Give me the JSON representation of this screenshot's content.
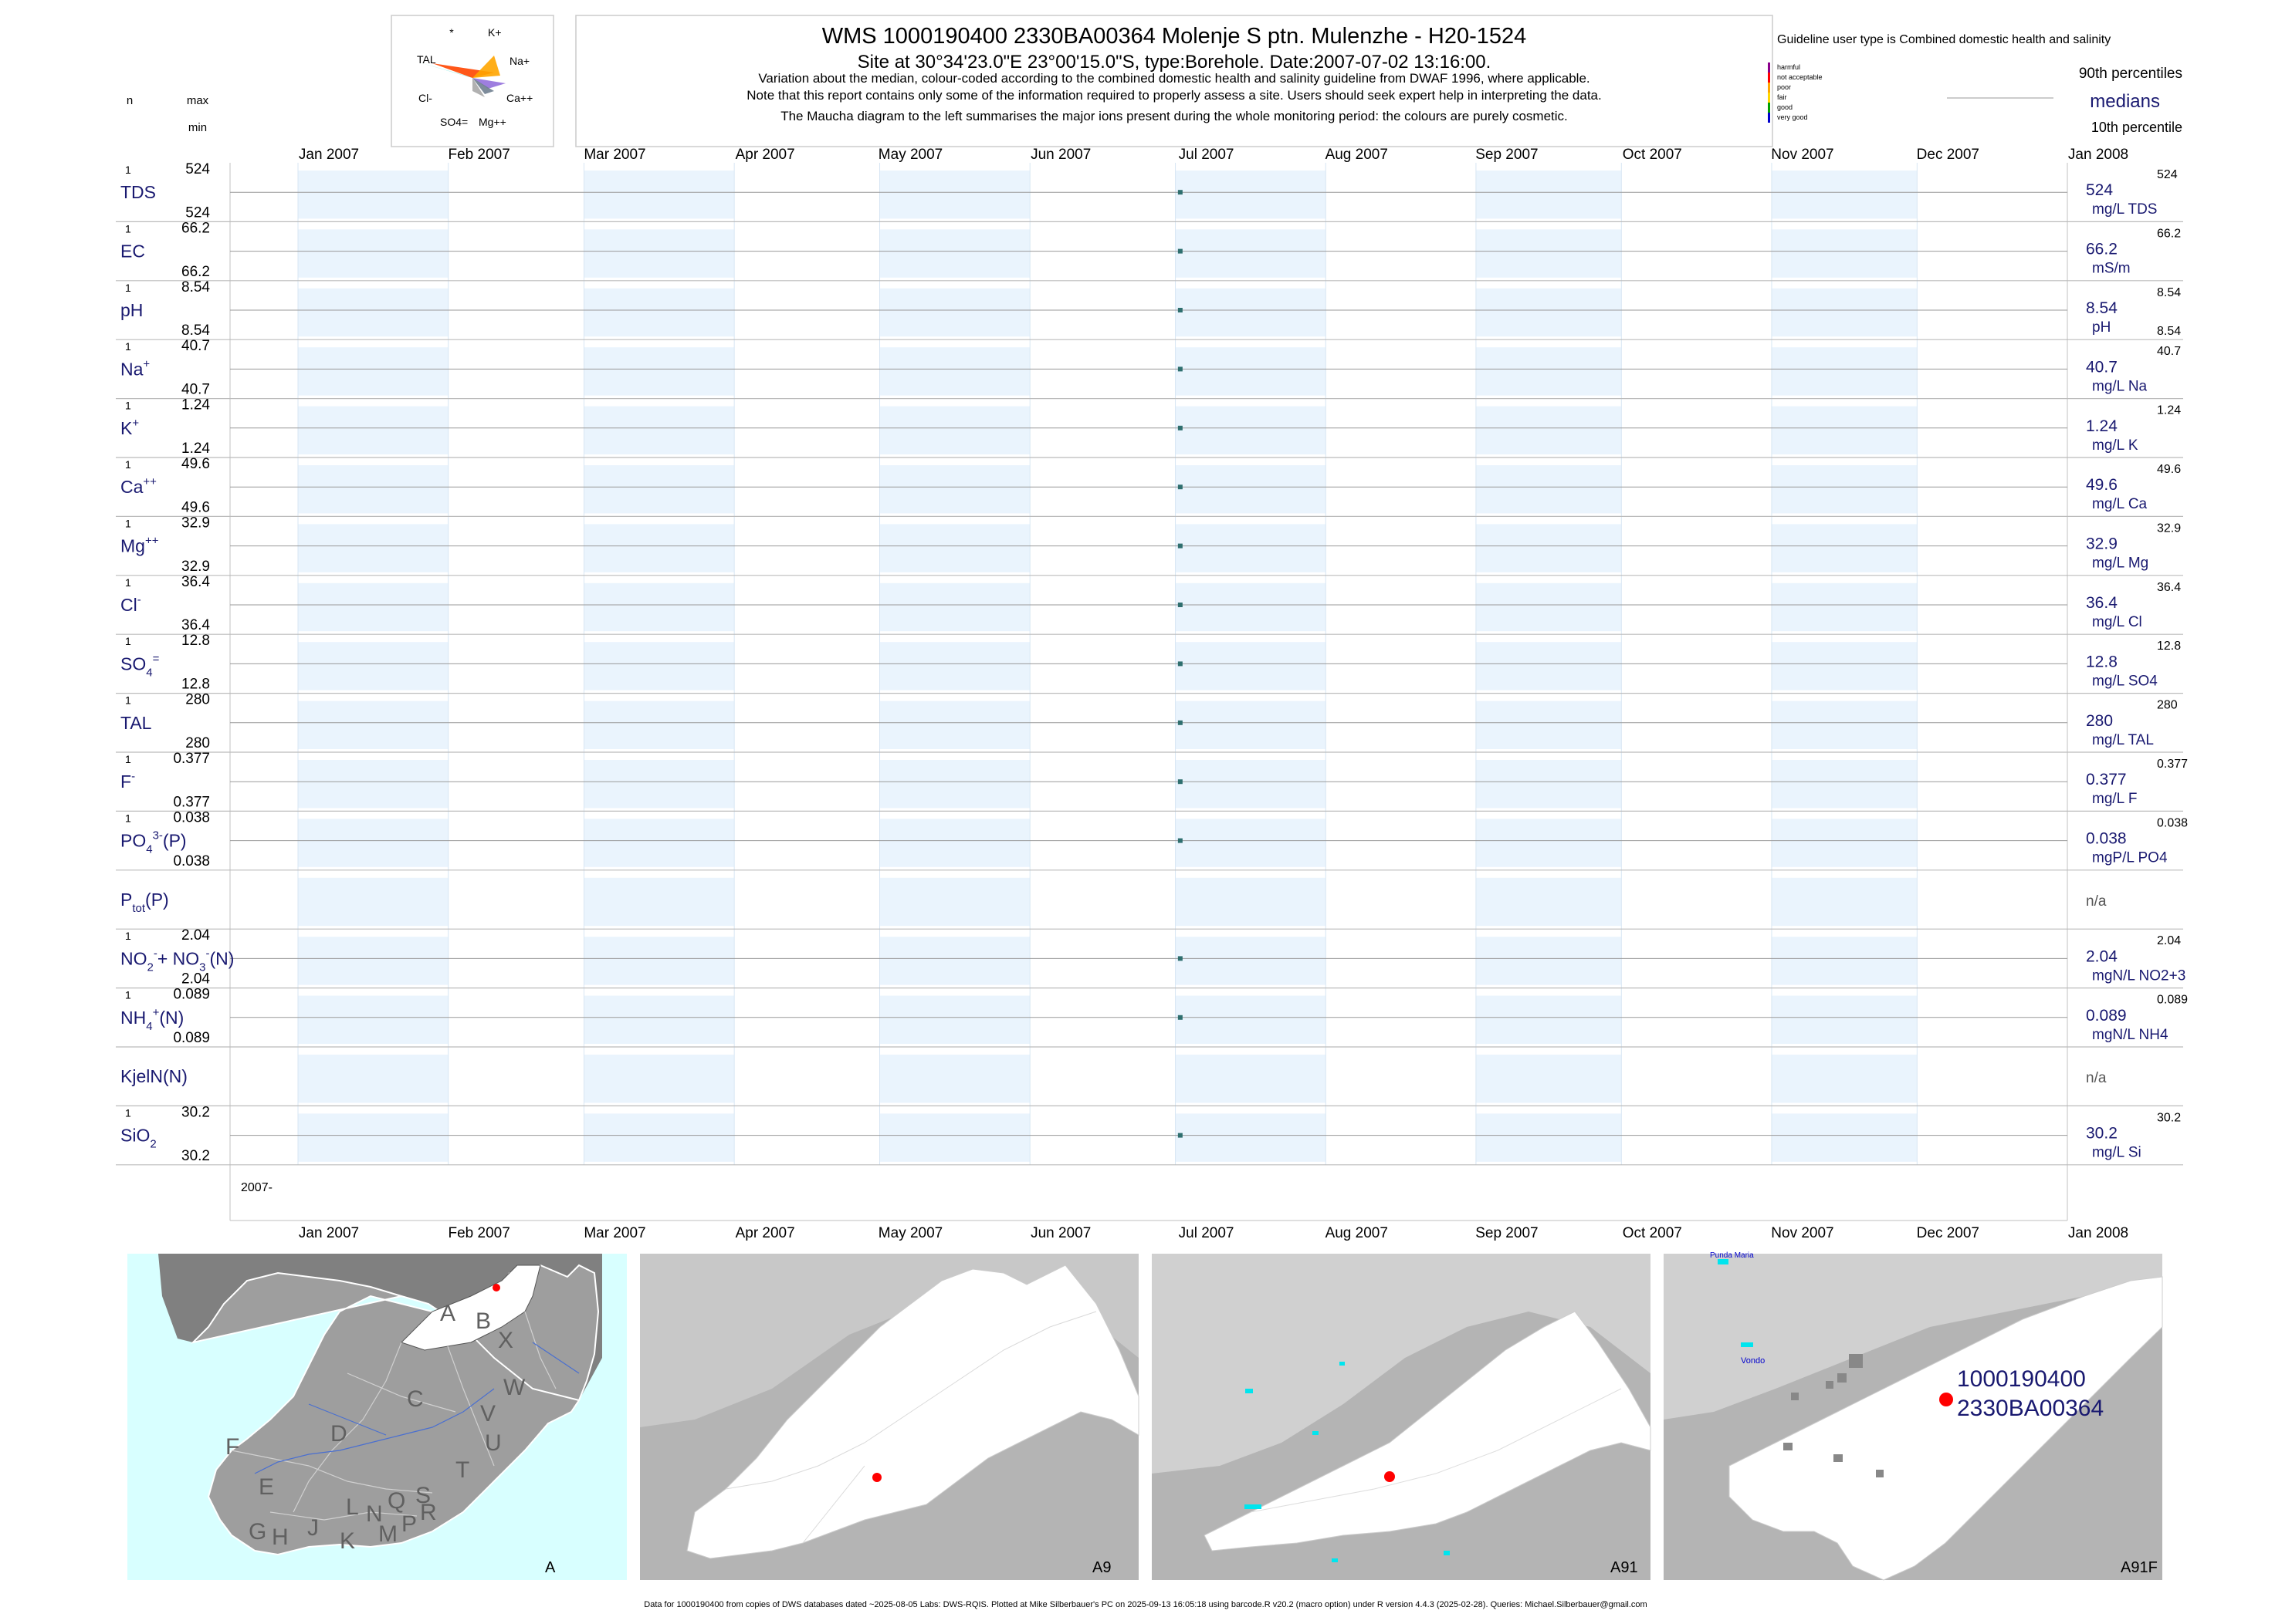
{
  "header": {
    "title": "WMS 1000190400 2330BA00364 Molenje S ptn. Mulenzhe - H20-1524",
    "subtitle": "Site at 30°34'23.0\"E 23°00'15.0\"S, type:Borehole. Date:2007-07-02 13:16:00.",
    "note1": "Variation about the median,  colour-coded according to the combined domestic health and salinity guideline from DWAF 1996, where applicable.",
    "note2": "Note that this report contains only some of the information required to properly assess a site. Users should seek expert help in interpreting the data.",
    "note3": "The Maucha diagram to the left summarises the major ions present during the whole monitoring period: the colours are purely cosmetic."
  },
  "left_header": {
    "n": "n",
    "max": "max",
    "min": "min"
  },
  "maucha": {
    "labels": [
      "*",
      "K+",
      "TAL",
      "Na+",
      "Cl-",
      "Ca++",
      "SO4=",
      "Mg++"
    ],
    "colors": [
      "#40e0d0",
      "#ff4500",
      "#ffa500",
      "#9370db",
      "#a9a9a9",
      "#708090"
    ]
  },
  "legend": {
    "title": "Guideline user type is Combined domestic health and salinity",
    "classes": [
      {
        "label": "harmful",
        "color": "#8b008b"
      },
      {
        "label": "not acceptable",
        "color": "#ff0000"
      },
      {
        "label": "poor",
        "color": "#ffa500"
      },
      {
        "label": "fair",
        "color": "#ffd700"
      },
      {
        "label": "good",
        "color": "#00a000"
      },
      {
        "label": "very good",
        "color": "#0000cd"
      }
    ],
    "p90": "90th percentiles",
    "medians": "medians",
    "p10": "10th percentile"
  },
  "chart_data": {
    "type": "scatter",
    "x_start": "2007-01-01",
    "x_end": "2008-01-01",
    "x_ticks": [
      "Jan 2007",
      "Feb 2007",
      "Mar 2007",
      "Apr 2007",
      "May 2007",
      "Jun 2007",
      "Jul 2007",
      "Aug 2007",
      "Sep 2007",
      "Oct 2007",
      "Nov 2007",
      "Dec 2007",
      "Jan 2008"
    ],
    "bottom_left_label": "2007-",
    "sample_date": "2007-07-02",
    "panels": [
      {
        "name": "TDS",
        "sup": "",
        "sub": "",
        "n": "1",
        "max": "524",
        "min": "524",
        "value": 524,
        "median": "524",
        "unit": "mg/L TDS",
        "p90": "524",
        "p10": ""
      },
      {
        "name": "EC",
        "sup": "",
        "sub": "",
        "n": "1",
        "max": "66.2",
        "min": "66.2",
        "value": 66.2,
        "median": "66.2",
        "unit": "mS/m",
        "p90": "66.2",
        "p10": ""
      },
      {
        "name": "pH",
        "sup": "",
        "sub": "",
        "n": "1",
        "max": "8.54",
        "min": "8.54",
        "value": 8.54,
        "median": "8.54",
        "unit": "pH",
        "p90": "8.54",
        "p10": "8.54"
      },
      {
        "name": "Na",
        "sup": "+",
        "sub": "",
        "n": "1",
        "max": "40.7",
        "min": "40.7",
        "value": 40.7,
        "median": "40.7",
        "unit": "mg/L Na",
        "p90": "40.7",
        "p10": ""
      },
      {
        "name": "K",
        "sup": "+",
        "sub": "",
        "n": "1",
        "max": "1.24",
        "min": "1.24",
        "value": 1.24,
        "median": "1.24",
        "unit": "mg/L K",
        "p90": "1.24",
        "p10": ""
      },
      {
        "name": "Ca",
        "sup": "++",
        "sub": "",
        "n": "1",
        "max": "49.6",
        "min": "49.6",
        "value": 49.6,
        "median": "49.6",
        "unit": "mg/L Ca",
        "p90": "49.6",
        "p10": ""
      },
      {
        "name": "Mg",
        "sup": "++",
        "sub": "",
        "n": "1",
        "max": "32.9",
        "min": "32.9",
        "value": 32.9,
        "median": "32.9",
        "unit": "mg/L Mg",
        "p90": "32.9",
        "p10": ""
      },
      {
        "name": "Cl",
        "sup": "-",
        "sub": "",
        "n": "1",
        "max": "36.4",
        "min": "36.4",
        "value": 36.4,
        "median": "36.4",
        "unit": "mg/L Cl",
        "p90": "36.4",
        "p10": ""
      },
      {
        "name": "SO",
        "sup": "=",
        "sub": "4",
        "n": "1",
        "max": "12.8",
        "min": "12.8",
        "value": 12.8,
        "median": "12.8",
        "unit": "mg/L SO4",
        "p90": "12.8",
        "p10": ""
      },
      {
        "name": "TAL",
        "sup": "",
        "sub": "",
        "n": "1",
        "max": "280",
        "min": "280",
        "value": 280,
        "median": "280",
        "unit": "mg/L TAL",
        "p90": "280",
        "p10": ""
      },
      {
        "name": "F",
        "sup": "-",
        "sub": "",
        "n": "1",
        "max": "0.377",
        "min": "0.377",
        "value": 0.377,
        "median": "0.377",
        "unit": "mg/L F",
        "p90": "0.377",
        "p10": ""
      },
      {
        "name": "PO",
        "sup": "3-",
        "sub": "4",
        "suffix": "(P)",
        "n": "1",
        "max": "0.038",
        "min": "0.038",
        "value": 0.038,
        "median": "0.038",
        "unit": "mgP/L PO4",
        "p90": "0.038",
        "p10": ""
      },
      {
        "name": "P",
        "sup": "",
        "sub": "tot",
        "suffix": "(P)",
        "n": "",
        "max": "",
        "min": "",
        "value": null,
        "median": "n/a",
        "unit": "",
        "p90": "",
        "p10": ""
      },
      {
        "name": "NO",
        "sup": "-",
        "sub": "2",
        "suffix": "+ NO",
        "sup2": "-",
        "sub2": "3",
        "suffix2": "(N)",
        "n": "1",
        "max": "2.04",
        "min": "2.04",
        "value": 2.04,
        "median": "2.04",
        "unit": "mgN/L NO2+3",
        "p90": "2.04",
        "p10": ""
      },
      {
        "name": "NH",
        "sup": "+",
        "sub": "4",
        "suffix": "(N)",
        "n": "1",
        "max": "0.089",
        "min": "0.089",
        "value": 0.089,
        "median": "0.089",
        "unit": "mgN/L NH4",
        "p90": "0.089",
        "p10": ""
      },
      {
        "name": "KjelN(N)",
        "sup": "",
        "sub": "",
        "n": "",
        "max": "",
        "min": "",
        "value": null,
        "median": "n/a",
        "unit": "",
        "p90": "",
        "p10": ""
      },
      {
        "name": "SiO",
        "sup": "",
        "sub": "2",
        "n": "1",
        "max": "30.2",
        "min": "30.2",
        "value": 30.2,
        "median": "30.2",
        "unit": "mg/L Si",
        "p90": "30.2",
        "p10": ""
      }
    ]
  },
  "maps": {
    "panel_labels": [
      "A",
      "A9",
      "A91",
      "A91F"
    ],
    "region_letters": [
      "A",
      "B",
      "X",
      "W",
      "C",
      "V",
      "U",
      "D",
      "T",
      "F",
      "E",
      "G",
      "H",
      "J",
      "K",
      "L",
      "M",
      "N",
      "P",
      "Q",
      "R",
      "S"
    ],
    "place_labels": [
      "Vondo",
      "Punda Maria"
    ],
    "site_id": "1000190400",
    "site_code": "2330BA00364",
    "site_color": "#ff0000"
  },
  "footer": "Data for 1000190400 from copies of DWS databases dated ~2025-08-05 Labs: DWS-RQIS. Plotted at Mike Silberbauer's PC on 2025-09-13 16:05:18 using barcode.R v20.2 (macro option) under R version 4.4.3 (2025-02-28). Queries: Michael.Silberbauer@gmail.com"
}
